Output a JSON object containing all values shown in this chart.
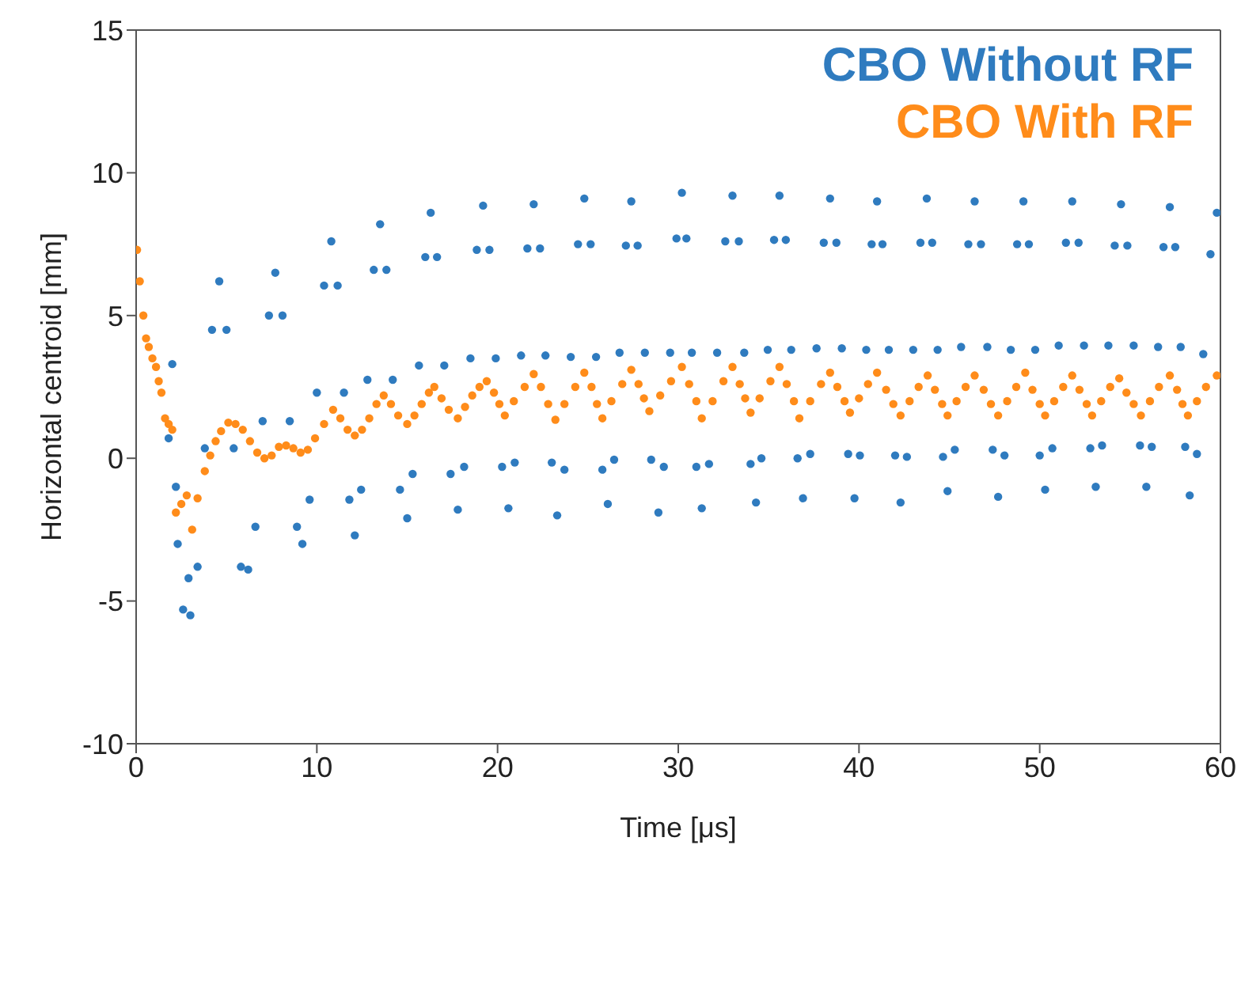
{
  "chart_data": {
    "type": "scatter",
    "xlabel": "Time [μs]",
    "ylabel": "Horizontal centroid [mm]",
    "xlim": [
      0,
      60
    ],
    "xticks": [
      0,
      10,
      20,
      30,
      40,
      50,
      60
    ],
    "ylim": [
      -10,
      15
    ],
    "yticks": [
      -10,
      -5,
      0,
      5,
      10,
      15
    ],
    "grid": false,
    "legend": "top right",
    "marker": "circle",
    "series": [
      {
        "name": "CBO Without RF",
        "color": "#2f7bbf",
        "x": [
          1.8,
          2.0,
          2.2,
          2.3,
          2.6,
          2.9,
          3.0,
          3.4,
          3.8,
          4.2,
          4.6,
          5.0,
          5.4,
          5.8,
          6.2,
          6.6,
          7.0,
          7.35,
          7.7,
          8.1,
          8.5,
          8.9,
          9.2,
          9.6,
          10.0,
          10.4,
          10.8,
          11.15,
          11.5,
          11.8,
          12.1,
          12.45,
          12.8,
          13.15,
          13.5,
          13.85,
          14.2,
          14.6,
          15.0,
          15.3,
          15.65,
          16.0,
          16.3,
          16.65,
          17.05,
          17.4,
          17.8,
          18.15,
          18.5,
          18.85,
          19.2,
          19.55,
          19.9,
          20.25,
          20.6,
          20.95,
          21.3,
          21.65,
          22.0,
          22.35,
          22.65,
          23.0,
          23.3,
          23.7,
          24.05,
          24.45,
          24.8,
          25.15,
          25.45,
          25.8,
          26.1,
          26.45,
          26.75,
          27.1,
          27.4,
          27.75,
          28.15,
          28.5,
          28.9,
          29.2,
          29.55,
          29.9,
          30.2,
          30.45,
          30.75,
          31.0,
          31.3,
          31.7,
          32.15,
          32.6,
          33.0,
          33.35,
          33.65,
          34.0,
          34.3,
          34.6,
          34.95,
          35.3,
          35.6,
          35.95,
          36.25,
          36.6,
          36.9,
          37.3,
          37.65,
          38.05,
          38.4,
          38.75,
          39.05,
          39.4,
          39.75,
          40.05,
          40.4,
          40.7,
          41.0,
          41.3,
          41.65,
          42.0,
          42.3,
          42.65,
          43.0,
          43.4,
          43.75,
          44.05,
          44.35,
          44.65,
          44.9,
          45.3,
          45.65,
          46.05,
          46.4,
          46.75,
          47.1,
          47.4,
          47.7,
          48.05,
          48.4,
          48.75,
          49.1,
          49.4,
          49.75,
          50.0,
          50.3,
          50.7,
          51.05,
          51.45,
          51.8,
          52.15,
          52.45,
          52.8,
          53.1,
          53.45,
          53.8,
          54.15,
          54.5,
          54.85,
          55.2,
          55.55,
          55.9,
          56.2,
          56.55,
          56.85,
          57.2,
          57.5,
          57.8,
          58.05,
          58.3,
          58.7,
          59.05,
          59.45,
          59.8
        ],
        "values": [
          0.7,
          3.3,
          -1.0,
          -3.0,
          -5.3,
          -4.2,
          -5.5,
          -3.8,
          0.35,
          4.5,
          6.2,
          4.5,
          0.35,
          -3.8,
          -3.9,
          -2.4,
          1.3,
          5.0,
          6.5,
          5.0,
          1.3,
          -2.4,
          -3.0,
          -1.45,
          2.3,
          6.05,
          7.6,
          6.05,
          2.3,
          -1.45,
          -2.7,
          -1.1,
          2.75,
          6.6,
          8.2,
          6.6,
          2.75,
          -1.1,
          -2.1,
          -0.55,
          3.25,
          7.05,
          8.6,
          7.05,
          3.25,
          -0.55,
          -1.8,
          -0.3,
          3.5,
          7.3,
          8.85,
          7.3,
          3.5,
          -0.3,
          -1.75,
          -0.15,
          3.6,
          7.35,
          8.9,
          7.35,
          3.6,
          -0.15,
          -2.0,
          -0.4,
          3.55,
          7.5,
          9.1,
          7.5,
          3.55,
          -0.4,
          -1.6,
          -0.05,
          3.7,
          7.45,
          9.0,
          7.45,
          3.7,
          -0.05,
          -1.9,
          -0.3,
          3.7,
          7.7,
          9.3,
          7.7,
          3.7,
          -0.3,
          -1.75,
          -0.2,
          3.7,
          7.6,
          9.2,
          7.6,
          3.7,
          -0.2,
          -1.55,
          0.0,
          3.8,
          7.65,
          9.2,
          7.65,
          3.8,
          0.0,
          -1.4,
          0.15,
          3.85,
          7.55,
          9.1,
          7.55,
          3.85,
          0.15,
          -1.4,
          0.1,
          3.8,
          7.5,
          9.0,
          7.5,
          3.8,
          0.1,
          -1.55,
          0.05,
          3.8,
          7.55,
          9.1,
          7.55,
          3.8,
          0.05,
          -1.15,
          0.3,
          3.9,
          7.5,
          9.0,
          7.5,
          3.9,
          0.3,
          -1.35,
          0.1,
          3.8,
          7.5,
          9.0,
          7.5,
          3.8,
          0.1,
          -1.1,
          0.35,
          3.95,
          7.55,
          9.0,
          7.55,
          3.95,
          0.35,
          -1.0,
          0.45,
          3.95,
          7.45,
          8.9,
          7.45,
          3.95,
          0.45,
          -1.0,
          0.4,
          3.9,
          7.4,
          8.8,
          7.4,
          3.9,
          0.4,
          -1.3,
          0.15,
          3.65,
          7.15,
          8.6
        ]
      },
      {
        "name": "CBO With RF",
        "color": "#ff8c1a",
        "x": [
          0.05,
          0.2,
          0.4,
          0.55,
          0.7,
          0.9,
          1.1,
          1.25,
          1.4,
          1.6,
          1.8,
          2.0,
          2.2,
          2.5,
          2.8,
          3.1,
          3.4,
          3.8,
          4.1,
          4.4,
          4.7,
          5.1,
          5.5,
          5.9,
          6.3,
          6.7,
          7.1,
          7.5,
          7.9,
          8.3,
          8.7,
          9.1,
          9.5,
          9.9,
          10.4,
          10.9,
          11.3,
          11.7,
          12.1,
          12.5,
          12.9,
          13.3,
          13.7,
          14.1,
          14.5,
          15.0,
          15.4,
          15.8,
          16.2,
          16.5,
          16.9,
          17.3,
          17.8,
          18.2,
          18.6,
          19.0,
          19.4,
          19.8,
          20.1,
          20.4,
          20.9,
          21.5,
          22.0,
          22.4,
          22.8,
          23.2,
          23.7,
          24.3,
          24.8,
          25.2,
          25.5,
          25.8,
          26.3,
          26.9,
          27.4,
          27.8,
          28.1,
          28.4,
          29.0,
          29.6,
          30.2,
          30.6,
          31.0,
          31.3,
          31.9,
          32.5,
          33.0,
          33.4,
          33.7,
          34.0,
          34.5,
          35.1,
          35.6,
          36.0,
          36.4,
          36.7,
          37.3,
          37.9,
          38.4,
          38.8,
          39.2,
          39.5,
          40.0,
          40.5,
          41.0,
          41.5,
          41.9,
          42.3,
          42.8,
          43.3,
          43.8,
          44.2,
          44.6,
          44.9,
          45.4,
          45.9,
          46.4,
          46.9,
          47.3,
          47.7,
          48.2,
          48.7,
          49.2,
          49.6,
          50.0,
          50.3,
          50.8,
          51.3,
          51.8,
          52.2,
          52.6,
          52.9,
          53.4,
          53.9,
          54.4,
          54.8,
          55.2,
          55.6,
          56.1,
          56.6,
          57.2,
          57.6,
          57.9,
          58.2,
          58.7,
          59.2,
          59.8
        ],
        "values": [
          7.3,
          6.2,
          5.0,
          4.2,
          3.9,
          3.5,
          3.2,
          2.7,
          2.3,
          1.4,
          1.2,
          1.0,
          -1.9,
          -1.6,
          -1.3,
          -2.5,
          -1.4,
          -0.45,
          0.1,
          0.6,
          0.95,
          1.25,
          1.2,
          1.0,
          0.6,
          0.2,
          0.0,
          0.1,
          0.4,
          0.45,
          0.35,
          0.2,
          0.3,
          0.7,
          1.2,
          1.7,
          1.4,
          1.0,
          0.8,
          1.0,
          1.4,
          1.9,
          2.2,
          1.9,
          1.5,
          1.2,
          1.5,
          1.9,
          2.3,
          2.5,
          2.1,
          1.7,
          1.4,
          1.8,
          2.2,
          2.5,
          2.7,
          2.3,
          1.9,
          1.5,
          2.0,
          2.5,
          2.95,
          2.5,
          1.9,
          1.35,
          1.9,
          2.5,
          3.0,
          2.5,
          1.9,
          1.4,
          2.0,
          2.6,
          3.1,
          2.6,
          2.1,
          1.65,
          2.2,
          2.7,
          3.2,
          2.6,
          2.0,
          1.4,
          2.0,
          2.7,
          3.2,
          2.6,
          2.1,
          1.6,
          2.1,
          2.7,
          3.2,
          2.6,
          2.0,
          1.4,
          2.0,
          2.6,
          3.0,
          2.5,
          2.0,
          1.6,
          2.1,
          2.6,
          3.0,
          2.4,
          1.9,
          1.5,
          2.0,
          2.5,
          2.9,
          2.4,
          1.9,
          1.5,
          2.0,
          2.5,
          2.9,
          2.4,
          1.9,
          1.5,
          2.0,
          2.5,
          3.0,
          2.4,
          1.9,
          1.5,
          2.0,
          2.5,
          2.9,
          2.4,
          1.9,
          1.5,
          2.0,
          2.5,
          2.8,
          2.3,
          1.9,
          1.5,
          2.0,
          2.5,
          2.9,
          2.4,
          1.9,
          1.5,
          2.0,
          2.5,
          2.9
        ]
      }
    ]
  }
}
